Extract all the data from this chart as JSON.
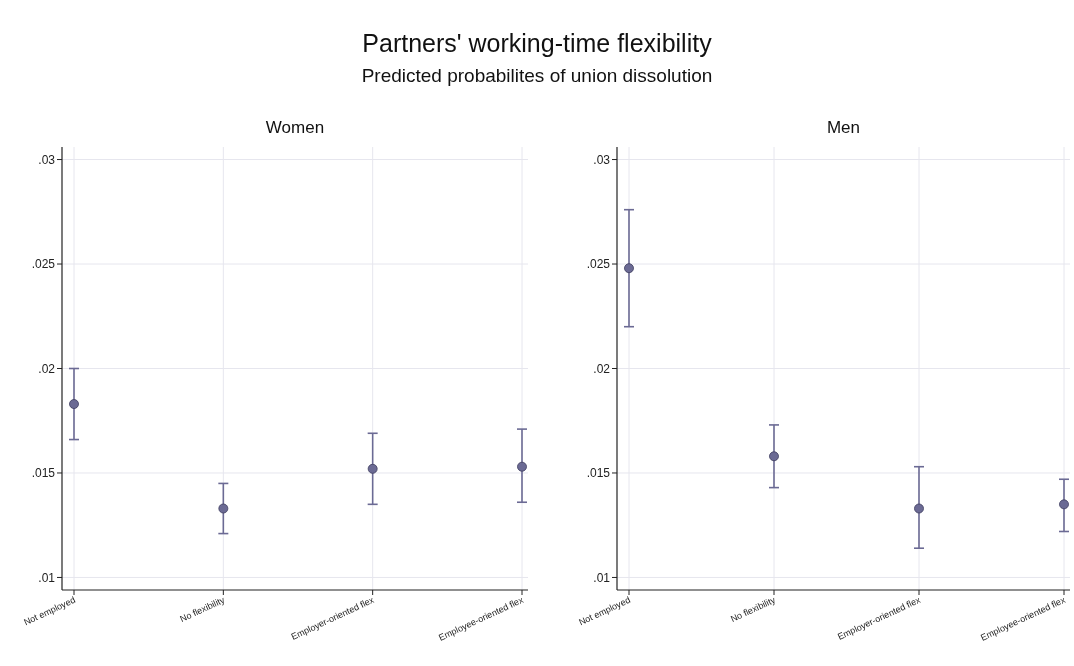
{
  "chart_data": [
    {
      "type": "scatter",
      "title": "Women",
      "annotations": [
        "Partners' working-time flexibility",
        "Predicted probabilites of union dissolution"
      ],
      "categories": [
        "Not employed",
        "No flexibility",
        "Employer-oriented flex",
        "Employee-oriented flex"
      ],
      "series": [
        {
          "color": "#6b6a94",
          "values": [
            0.0183,
            0.0133,
            0.0152,
            0.0153
          ],
          "errors": [
            [
              0.0166,
              0.02
            ],
            [
              0.0121,
              0.0145
            ],
            [
              0.0135,
              0.0169
            ],
            [
              0.0136,
              0.0171
            ]
          ]
        }
      ],
      "ylim": [
        0.0094,
        0.0306
      ],
      "yticks": [
        {
          "value": 0.01,
          "label": ".01"
        },
        {
          "value": 0.015,
          "label": ".015"
        },
        {
          "value": 0.02,
          "label": ".02"
        },
        {
          "value": 0.025,
          "label": ".025"
        },
        {
          "value": 0.03,
          "label": ".03"
        }
      ],
      "grid": true,
      "marker": "circle"
    },
    {
      "type": "scatter",
      "title": "Men",
      "categories": [
        "Not employed",
        "No flexibility",
        "Employer-oriented flex",
        "Employee-oriented flex"
      ],
      "series": [
        {
          "color": "#6b6a94",
          "values": [
            0.0248,
            0.0158,
            0.0133,
            0.0135
          ],
          "errors": [
            [
              0.022,
              0.0276
            ],
            [
              0.0143,
              0.0173
            ],
            [
              0.0114,
              0.0153
            ],
            [
              0.0122,
              0.0147
            ]
          ]
        }
      ],
      "ylim": [
        0.0094,
        0.0306
      ],
      "yticks": [
        {
          "value": 0.01,
          "label": ".01"
        },
        {
          "value": 0.015,
          "label": ".015"
        },
        {
          "value": 0.02,
          "label": ".02"
        },
        {
          "value": 0.025,
          "label": ".025"
        },
        {
          "value": 0.03,
          "label": ".03"
        }
      ],
      "grid": true,
      "marker": "circle"
    }
  ]
}
